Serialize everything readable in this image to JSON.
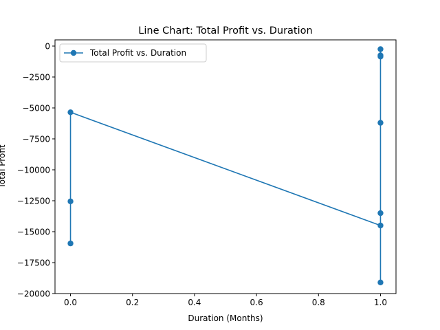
{
  "chart_data": {
    "type": "line",
    "title": "Line Chart: Total Profit vs. Duration",
    "xlabel": "Duration (Months)",
    "ylabel": "Total Profit",
    "xlim": [
      -0.05,
      1.05
    ],
    "ylim": [
      -20000,
      500
    ],
    "x_ticks": [
      0.0,
      0.2,
      0.4,
      0.6,
      0.8,
      1.0
    ],
    "x_tick_labels": [
      "0.0",
      "0.2",
      "0.4",
      "0.6",
      "0.8",
      "1.0"
    ],
    "y_ticks": [
      0,
      -2500,
      -5000,
      -7500,
      -10000,
      -12500,
      -15000,
      -17500,
      -20000
    ],
    "y_tick_labels": [
      "0",
      "−2500",
      "−5000",
      "−7500",
      "−10000",
      "−12500",
      "−15000",
      "−17500",
      "−20000"
    ],
    "grid": false,
    "legend_position": "upper-left",
    "series": [
      {
        "name": "Total Profit vs. Duration",
        "color": "#1f77b4",
        "marker": "circle",
        "points": [
          {
            "x": 0,
            "y": -15950
          },
          {
            "x": 0,
            "y": -12550
          },
          {
            "x": 0,
            "y": -5350
          },
          {
            "x": 1,
            "y": -14500
          },
          {
            "x": 1,
            "y": -13500
          },
          {
            "x": 1,
            "y": -19100
          },
          {
            "x": 1,
            "y": -6200
          },
          {
            "x": 1,
            "y": -750
          },
          {
            "x": 1,
            "y": -850
          },
          {
            "x": 1,
            "y": -250
          }
        ]
      }
    ]
  }
}
